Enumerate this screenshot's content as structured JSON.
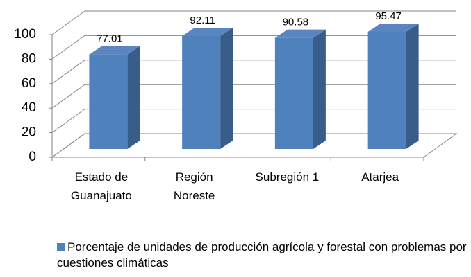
{
  "chart_data": {
    "type": "bar3d",
    "categories": [
      "Estado de Guanajuato",
      "Región Noreste",
      "Subregión 1",
      "Atarjea"
    ],
    "series": [
      {
        "name": "Porcentaje de unidades de producción agrícola y forestal con problemas por cuestiones climáticas",
        "color": "#4f81bd",
        "values": [
          77.01,
          92.11,
          90.58,
          95.47
        ]
      }
    ],
    "ylim": [
      0,
      100
    ],
    "yticks": [
      0,
      20,
      40,
      60,
      80,
      100
    ],
    "grid": true,
    "legend": "bottom"
  }
}
